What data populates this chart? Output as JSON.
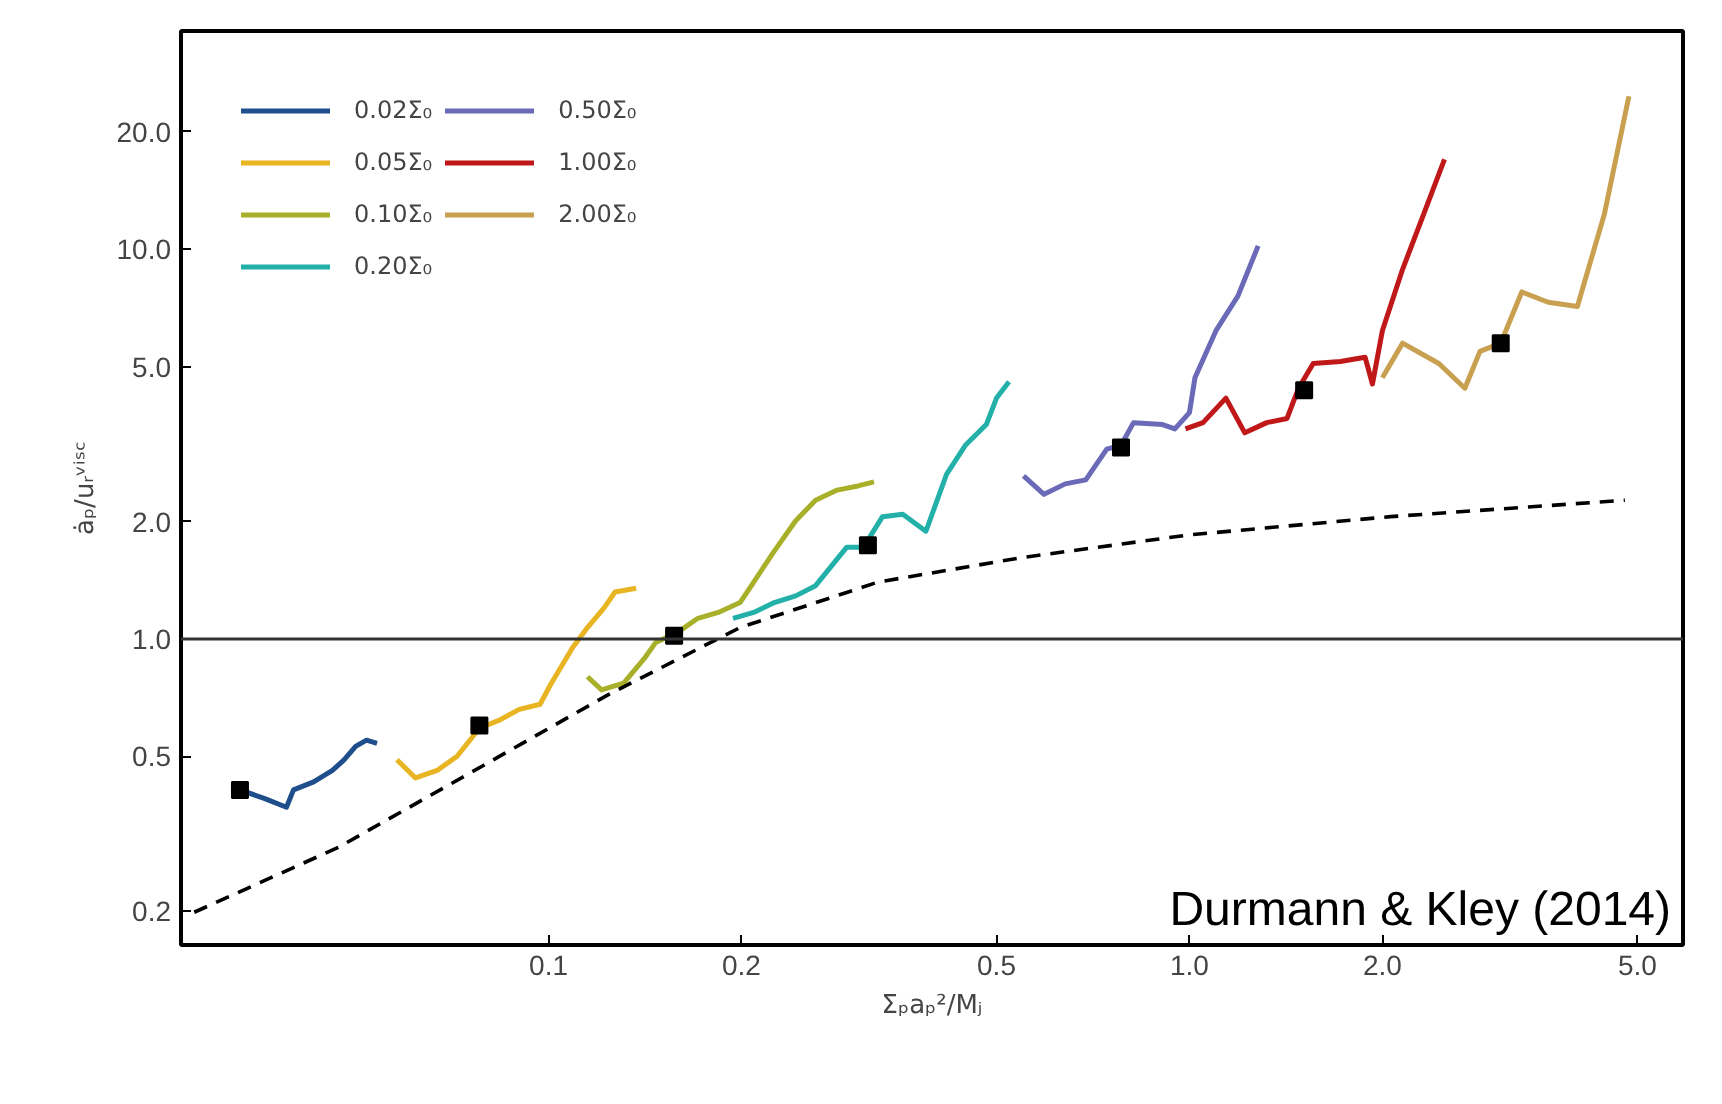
{
  "chart_data": {
    "type": "line",
    "xlabel": "Σₚaₚ²/Mⱼ",
    "ylabel": "ȧₚ/uᵣᵛⁱˢᶜ",
    "log": "xy",
    "grid": false,
    "legend": "top left",
    "line_style": "solid",
    "xlim": [
      0.0267,
      5.89
    ],
    "ylim": [
      0.164,
      36.3
    ],
    "xticks": [
      0.1,
      0.2,
      0.5,
      {
        "value": 1,
        "label": "1.0"
      },
      {
        "value": 2,
        "label": "2.0"
      },
      {
        "value": 5,
        "label": "5.0"
      }
    ],
    "yticks": [
      {
        "value": 0.2,
        "label": "0.2"
      },
      {
        "value": 0.5,
        "label": "0.5"
      },
      {
        "value": 1,
        "label": "1.0"
      },
      {
        "value": 2,
        "label": "2.0"
      },
      {
        "value": 5,
        "label": "5.0"
      },
      {
        "value": 10,
        "label": "10.0"
      },
      {
        "value": 20,
        "label": "20.0"
      }
    ],
    "ref_lines": [
      {
        "axis": "y",
        "value": 1,
        "color": "#333333",
        "line_style": "solid"
      }
    ],
    "annotations": [
      "Durmann & Kley (2014)"
    ],
    "series": [
      {
        "name": "0.02Σ₀",
        "color": "#1f4e8c",
        "x": [
          0.033,
          0.036,
          0.039,
          0.04,
          0.043,
          0.046,
          0.048,
          0.05,
          0.052,
          0.054
        ],
        "values": [
          0.41,
          0.39,
          0.37,
          0.41,
          0.43,
          0.46,
          0.49,
          0.53,
          0.55,
          0.54
        ]
      },
      {
        "name": "0.05Σ₀",
        "color": "#e8b422",
        "x": [
          0.058,
          0.062,
          0.067,
          0.072,
          0.078,
          0.084,
          0.09,
          0.097,
          0.101,
          0.109,
          0.115,
          0.122,
          0.127,
          0.137
        ],
        "values": [
          0.49,
          0.44,
          0.46,
          0.5,
          0.59,
          0.62,
          0.66,
          0.68,
          0.77,
          0.95,
          1.07,
          1.2,
          1.32,
          1.35
        ]
      },
      {
        "name": "0.10Σ₀",
        "color": "#a8b02a",
        "x": [
          0.115,
          0.121,
          0.131,
          0.141,
          0.147,
          0.159,
          0.171,
          0.184,
          0.199,
          0.209,
          0.225,
          0.243,
          0.261,
          0.282,
          0.304,
          0.322
        ],
        "values": [
          0.8,
          0.74,
          0.77,
          0.89,
          0.98,
          1.04,
          1.13,
          1.17,
          1.24,
          1.4,
          1.68,
          2.01,
          2.27,
          2.41,
          2.47,
          2.53
        ]
      },
      {
        "name": "0.20Σ₀",
        "color": "#22b0a8",
        "x": [
          0.194,
          0.209,
          0.225,
          0.243,
          0.261,
          0.292,
          0.31,
          0.332,
          0.357,
          0.388,
          0.418,
          0.447,
          0.482,
          0.5,
          0.523
        ],
        "values": [
          1.13,
          1.17,
          1.24,
          1.29,
          1.37,
          1.72,
          1.72,
          2.06,
          2.09,
          1.89,
          2.65,
          3.14,
          3.55,
          4.15,
          4.57
        ]
      },
      {
        "name": "0.50Σ₀",
        "color": "#6a6ab8",
        "x": [
          0.551,
          0.593,
          0.64,
          0.689,
          0.743,
          0.782,
          0.818,
          0.908,
          0.949,
          1.0,
          1.02,
          1.1,
          1.19,
          1.28
        ],
        "values": [
          2.62,
          2.35,
          2.5,
          2.56,
          3.07,
          3.14,
          3.59,
          3.55,
          3.46,
          3.81,
          4.68,
          6.18,
          7.58,
          10.2
        ]
      },
      {
        "name": "1.00Σ₀",
        "color": "#c01818",
        "x": [
          0.986,
          1.05,
          1.14,
          1.22,
          1.32,
          1.42,
          1.48,
          1.56,
          1.72,
          1.88,
          1.93,
          2.0,
          2.15,
          2.32,
          2.5
        ],
        "values": [
          3.46,
          3.59,
          4.15,
          3.38,
          3.59,
          3.68,
          4.4,
          5.09,
          5.15,
          5.28,
          4.51,
          6.18,
          8.87,
          12.3,
          17.0
        ]
      },
      {
        "name": "2.00Σ₀",
        "color": "#c8a050",
        "x": [
          2.0,
          2.15,
          2.45,
          2.69,
          2.84,
          3.06,
          3.3,
          3.63,
          4.03,
          4.44,
          4.85
        ],
        "values": [
          4.68,
          5.74,
          5.09,
          4.4,
          5.47,
          5.74,
          7.77,
          7.31,
          7.13,
          12.3,
          24.7
        ]
      },
      {
        "color": "#000000",
        "line_style": "dashed",
        "x": [
          0.028,
          0.047,
          0.079,
          0.124,
          0.199,
          0.327,
          0.551,
          1.0,
          2.06,
          4.78
        ],
        "values": [
          0.199,
          0.292,
          0.473,
          0.72,
          1.07,
          1.4,
          1.62,
          1.85,
          2.06,
          2.27
        ]
      },
      {
        "type": "scatter",
        "marker": "square",
        "color": "#000000",
        "x": [
          0.033,
          0.078,
          0.157,
          0.315,
          0.782,
          1.51,
          3.06
        ],
        "values": [
          0.41,
          0.6,
          1.02,
          1.74,
          3.1,
          4.35,
          5.74
        ]
      }
    ]
  }
}
